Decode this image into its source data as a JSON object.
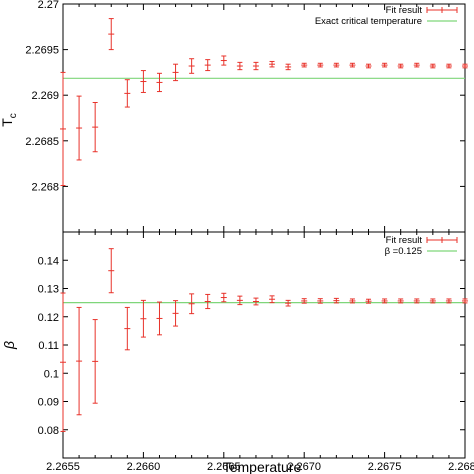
{
  "chart_data": [
    {
      "type": "scatter",
      "panel": "top",
      "xlabel": "",
      "ylabel": "T",
      "ylabel_subscript": "c",
      "xlim": [
        2.2655,
        2.268
      ],
      "ylim": [
        2.2675,
        2.27
      ],
      "yticks": [
        "2.268",
        "2.2685",
        "2.269",
        "2.2695",
        "2.27"
      ],
      "grid": false,
      "legend_position": "top-right",
      "series": [
        {
          "name": "Fit result",
          "color": "#e8322a",
          "marker": "errorbar",
          "x": [
            2.2655,
            2.2656,
            2.2657,
            2.2658,
            2.2659,
            2.266,
            2.2661,
            2.2662,
            2.2663,
            2.2664,
            2.2665,
            2.2666,
            2.2667,
            2.2668,
            2.2669,
            2.267,
            2.2671,
            2.2672,
            2.2673,
            2.2674,
            2.2675,
            2.2676,
            2.2677,
            2.2678,
            2.2679,
            2.268
          ],
          "y": [
            2.26863,
            2.26864,
            2.26865,
            2.26967,
            2.26902,
            2.26915,
            2.26914,
            2.26925,
            2.26932,
            2.26933,
            2.26938,
            2.26932,
            2.26932,
            2.26934,
            2.26931,
            2.26933,
            2.26933,
            2.26933,
            2.26933,
            2.26932,
            2.26933,
            2.26932,
            2.26933,
            2.26932,
            2.26932,
            2.26932
          ],
          "err": [
            0.00062,
            0.00035,
            0.00027,
            0.00017,
            0.00015,
            0.00012,
            0.0001,
            9e-05,
            8e-05,
            6e-05,
            5e-05,
            4e-05,
            4e-05,
            3e-05,
            3e-05,
            2e-05,
            2e-05,
            2e-05,
            2e-05,
            2e-05,
            2e-05,
            2e-05,
            2e-05,
            2e-05,
            2e-05,
            2e-05
          ]
        },
        {
          "name": "Exact critical temperature",
          "color": "#7fd67a",
          "marker": "hline",
          "y_const": 2.269185
        }
      ]
    },
    {
      "type": "scatter",
      "panel": "bottom",
      "xlabel": "Temperature",
      "ylabel": "β",
      "xlim": [
        2.2655,
        2.268
      ],
      "ylim": [
        0.07,
        0.15
      ],
      "xticks": [
        "2.2655",
        "2.2660",
        "2.2665",
        "2.2670",
        "2.2675",
        "2.2680"
      ],
      "yticks": [
        "0.08",
        "0.09",
        "0.1",
        "0.11",
        "0.12",
        "0.13",
        "0.14"
      ],
      "grid": false,
      "legend_position": "top-right",
      "series": [
        {
          "name": "Fit result",
          "color": "#e8322a",
          "marker": "errorbar",
          "x": [
            2.2655,
            2.2656,
            2.2657,
            2.2658,
            2.2659,
            2.266,
            2.2661,
            2.2662,
            2.2663,
            2.2664,
            2.2665,
            2.2666,
            2.2667,
            2.2668,
            2.2669,
            2.267,
            2.2671,
            2.2672,
            2.2673,
            2.2674,
            2.2675,
            2.2676,
            2.2677,
            2.2678,
            2.2679,
            2.268
          ],
          "y": [
            0.1039,
            0.1043,
            0.1042,
            0.1363,
            0.1158,
            0.1193,
            0.1194,
            0.1212,
            0.1246,
            0.1254,
            0.1268,
            0.1258,
            0.1254,
            0.1262,
            0.1248,
            0.1256,
            0.1256,
            0.1257,
            0.1256,
            0.1255,
            0.1256,
            0.1256,
            0.1256,
            0.1256,
            0.1256,
            0.1256
          ],
          "err": [
            0.0245,
            0.019,
            0.0148,
            0.0078,
            0.0075,
            0.0065,
            0.0058,
            0.0045,
            0.0035,
            0.0025,
            0.0015,
            0.0015,
            0.0012,
            0.0012,
            0.001,
            0.0008,
            0.0008,
            0.0008,
            0.0007,
            0.0007,
            0.0007,
            0.0007,
            0.0007,
            0.0007,
            0.0007,
            0.0007
          ]
        },
        {
          "name": "β =0.125",
          "color": "#7fd67a",
          "marker": "hline",
          "y_const": 0.125
        }
      ]
    }
  ]
}
